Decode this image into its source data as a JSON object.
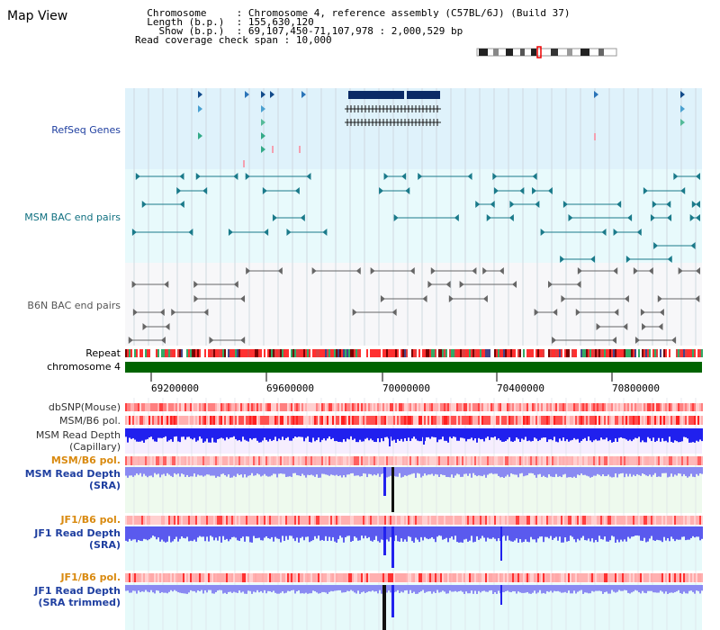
{
  "title": "Map View",
  "info": {
    "chromosome_key": "Chromosome",
    "chromosome_value": "Chromosome 4, reference assembly (C57BL/6J) (Build 37)",
    "length_key": "Length (b.p.)",
    "length_value": "155,630,120",
    "show_key": "Show (b.p.)",
    "show_value": "69,107,450-71,107,978 : 2,000,529 bp",
    "coverage_key": "Read coverage check span",
    "coverage_value": "10,000"
  },
  "tracks": {
    "refseq": "RefSeq Genes",
    "msm_bac": "MSM BAC end pairs",
    "b6n_bac": "B6N BAC end pairs",
    "repeat": "Repeat",
    "chromosome": "chromosome 4",
    "dbsnp": "dbSNP(Mouse)",
    "msm_b6_pol": "MSM/B6 pol.",
    "msm_depth_cap_1": "MSM Read Depth",
    "msm_depth_cap_2": "(Capillary)",
    "msm_b6_pol_2": "MSM/B6 pol.",
    "msm_depth_sra_1": "MSM Read Depth",
    "msm_depth_sra_2": "(SRA)",
    "jf1_b6_pol": "JF1/B6 pol.",
    "jf1_depth_sra_1": "JF1 Read Depth",
    "jf1_depth_sra_2": "(SRA)",
    "jf1_b6_pol_2": "JF1/B6 pol.",
    "jf1_depth_trim_1": "JF1 Read Depth",
    "jf1_depth_trim_2": "(SRA trimmed)"
  },
  "axis": {
    "ticks": [
      "69200000",
      "69600000",
      "70000000",
      "70400000",
      "70800000"
    ]
  },
  "colors": {
    "refseq_bg": "#dff2fb",
    "msm_bg": "#e6f9fb",
    "label_blue": "#1f3fa0",
    "label_orange": "#d98a10",
    "chromosome_green": "#006400",
    "depth_blue": "#2222ee",
    "depth_light": "#8080f0"
  }
}
